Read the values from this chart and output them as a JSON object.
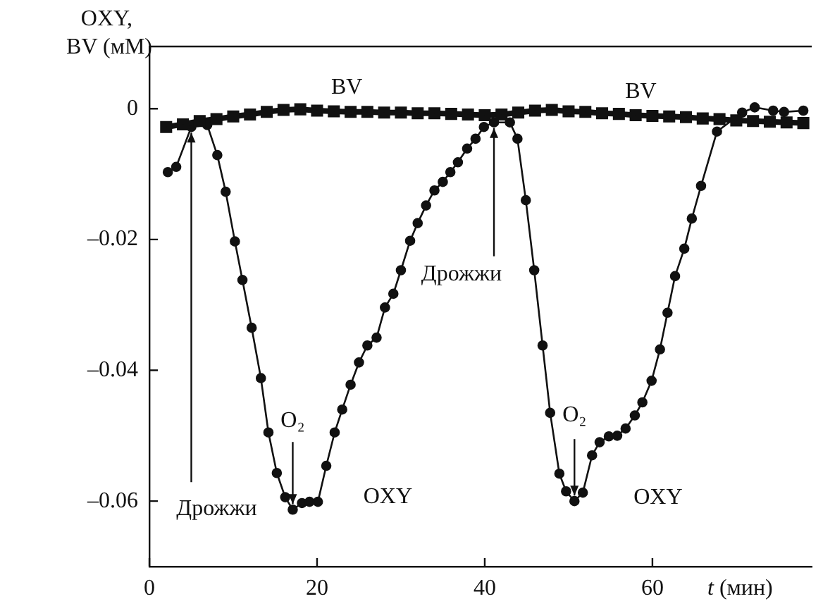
{
  "chart_data": {
    "type": "line",
    "xlabel": "t (мин)",
    "ylabel": "OXY, BV (мМ)",
    "xlim": [
      0,
      79
    ],
    "xticks": [
      0,
      20,
      40,
      60
    ],
    "ylim": [
      -0.07,
      0.0095
    ],
    "yticks": [
      0,
      {
        "value": -0.02,
        "label": "–0.02"
      },
      {
        "value": -0.04,
        "label": "–0.04"
      },
      {
        "value": -0.06,
        "label": "–0.06"
      }
    ],
    "grid": false,
    "legend": false,
    "series": [
      {
        "name": "BV",
        "color": "#111111",
        "marker": "square",
        "x": [
          2,
          4,
          6,
          8,
          10,
          12,
          14,
          16,
          18,
          20,
          22,
          24,
          26,
          28,
          30,
          32,
          34,
          36,
          38,
          40,
          42,
          44,
          46,
          48,
          50,
          52,
          54,
          56,
          58,
          60,
          62,
          64,
          66,
          68,
          70,
          72,
          74,
          76,
          78
        ],
        "values": [
          -0.0028,
          -0.0024,
          -0.0019,
          -0.0016,
          -0.0012,
          -0.0009,
          -0.0005,
          -0.0002,
          -0.0001,
          -0.0003,
          -0.0004,
          -0.0005,
          -0.0005,
          -0.0006,
          -0.0006,
          -0.0007,
          -0.0007,
          -0.0008,
          -0.0009,
          -0.001,
          -0.0009,
          -0.0006,
          -0.0003,
          -0.0002,
          -0.0004,
          -0.0005,
          -0.0007,
          -0.0008,
          -0.001,
          -0.0011,
          -0.0012,
          -0.0013,
          -0.0015,
          -0.0016,
          -0.0018,
          -0.0019,
          -0.002,
          -0.0021,
          -0.0022
        ]
      },
      {
        "name": "OXY",
        "color": "#111111",
        "marker": "circle",
        "x": [
          2.2,
          3.2,
          5.0,
          6.9,
          8.1,
          9.1,
          10.2,
          11.1,
          12.2,
          13.3,
          14.2,
          15.2,
          16.2,
          17.1,
          18.2,
          19.1,
          20.1,
          21.1,
          22.1,
          23.0,
          24.0,
          25.0,
          26.0,
          27.1,
          28.1,
          29.1,
          30.0,
          31.1,
          32.0,
          33.0,
          34.0,
          35.0,
          35.9,
          36.8,
          37.9,
          38.9,
          39.9,
          41.1,
          43.0,
          43.9,
          44.9,
          45.9,
          46.9,
          47.8,
          48.9,
          49.7,
          50.7,
          51.7,
          52.8,
          53.7,
          54.8,
          55.8,
          56.8,
          57.9,
          58.8,
          59.9,
          60.9,
          61.8,
          62.7,
          63.8,
          64.7,
          65.8,
          67.7,
          70.7,
          72.2,
          74.4,
          75.7,
          78.0
        ],
        "values": [
          -0.0097,
          -0.0089,
          -0.0028,
          -0.0025,
          -0.0071,
          -0.0127,
          -0.0203,
          -0.0262,
          -0.0335,
          -0.0412,
          -0.0495,
          -0.0557,
          -0.0594,
          -0.0613,
          -0.0603,
          -0.0601,
          -0.0601,
          -0.0546,
          -0.0495,
          -0.046,
          -0.0422,
          -0.0388,
          -0.0362,
          -0.035,
          -0.0304,
          -0.0283,
          -0.0247,
          -0.0202,
          -0.0175,
          -0.0148,
          -0.0125,
          -0.0112,
          -0.0097,
          -0.0082,
          -0.0061,
          -0.0046,
          -0.0028,
          -0.0021,
          -0.0021,
          -0.0046,
          -0.014,
          -0.0247,
          -0.0362,
          -0.0465,
          -0.0558,
          -0.0585,
          -0.06,
          -0.0587,
          -0.053,
          -0.051,
          -0.0501,
          -0.05,
          -0.0489,
          -0.0469,
          -0.0449,
          -0.0416,
          -0.0368,
          -0.0312,
          -0.0256,
          -0.0214,
          -0.0168,
          -0.0118,
          -0.0035,
          -0.0006,
          0.0002,
          -0.0003,
          -0.0005,
          -0.0003
        ]
      }
    ],
    "annotations": [
      {
        "text": "O₂",
        "x": 17.1,
        "y": -0.0613
      },
      {
        "text": "O₂",
        "x": 50.7,
        "y": -0.06
      },
      {
        "text": "Дрожжи",
        "x": 5.0,
        "y": -0.0028
      },
      {
        "text": "Дрожжи",
        "x": 41.1,
        "y": -0.0021
      }
    ]
  }
}
